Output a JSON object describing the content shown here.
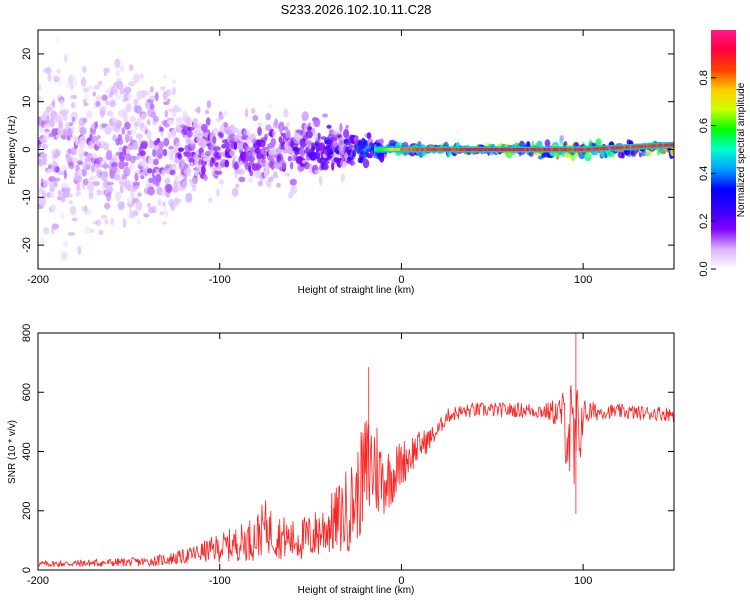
{
  "figure_title": "S233.2026.102.10.11.C28",
  "chart_data": [
    {
      "type": "heatmap",
      "title": "S233.2026.102.10.11.C28",
      "xlabel": "Height of straight line (km)",
      "ylabel": "Frequency (Hz)",
      "xlim": [
        -200,
        150
      ],
      "ylim": [
        -25,
        25
      ],
      "xticks": [
        -200,
        -100,
        0,
        100
      ],
      "yticks": [
        -20,
        -10,
        0,
        10,
        20
      ],
      "colorbar": {
        "label": "Normalized spectral amplitude",
        "range": [
          0.0,
          1.0
        ],
        "ticks": [
          0.0,
          0.2,
          0.4,
          0.6,
          0.8
        ],
        "colormap": [
          "#ffffff",
          "#d9b3ff",
          "#8000ff",
          "#3300ff",
          "#0000ff",
          "#00a0ff",
          "#00ffcc",
          "#00ff00",
          "#ccff00",
          "#ffcc00",
          "#ff4000",
          "#ff0040",
          "#ff1a8c"
        ]
      },
      "description_points": [
        {
          "height_km": -200,
          "spread_hz": 25,
          "peak_amplitude": 0.15
        },
        {
          "height_km": -150,
          "spread_hz": 25,
          "peak_amplitude": 0.15
        },
        {
          "height_km": -110,
          "spread_hz": 12,
          "peak_amplitude": 0.2
        },
        {
          "height_km": -50,
          "spread_hz": 10,
          "peak_amplitude": 0.25
        },
        {
          "height_km": -30,
          "spread_hz": 6,
          "peak_amplitude": 0.35
        },
        {
          "height_km": -15,
          "spread_hz": 3,
          "peak_amplitude": 0.55
        },
        {
          "height_km": 0,
          "spread_hz": 1.5,
          "peak_amplitude": 0.85
        },
        {
          "height_km": 50,
          "spread_hz": 1,
          "peak_amplitude": 0.95
        },
        {
          "height_km": 95,
          "spread_hz": 3,
          "peak_amplitude": 0.9
        },
        {
          "height_km": 150,
          "spread_hz": 1.5,
          "peak_amplitude": 0.9
        }
      ],
      "line_frequency_hz": 0.0,
      "line_end_frequency_hz": 1.0
    },
    {
      "type": "line",
      "xlabel": "Height of straight line (km)",
      "ylabel": "SNR (10 * v/v)",
      "xlim": [
        -200,
        150
      ],
      "ylim": [
        0,
        800
      ],
      "xticks": [
        -200,
        -100,
        0,
        100
      ],
      "yticks": [
        0,
        200,
        400,
        600,
        800
      ],
      "series": [
        {
          "name": "SNR",
          "color": "#ff2020",
          "x": [
            -200,
            -180,
            -160,
            -140,
            -130,
            -120,
            -110,
            -100,
            -90,
            -80,
            -75,
            -70,
            -60,
            -50,
            -40,
            -35,
            -30,
            -25,
            -20,
            -15,
            -10,
            -5,
            0,
            5,
            10,
            15,
            20,
            25,
            30,
            35,
            40,
            50,
            60,
            70,
            80,
            88,
            92,
            95,
            97,
            100,
            110,
            120,
            130,
            140,
            150
          ],
          "y": [
            20,
            22,
            25,
            28,
            35,
            45,
            60,
            75,
            90,
            110,
            150,
            120,
            100,
            110,
            150,
            170,
            200,
            240,
            330,
            360,
            300,
            320,
            360,
            390,
            420,
            440,
            470,
            520,
            530,
            535,
            540,
            540,
            540,
            540,
            535,
            530,
            480,
            380,
            430,
            530,
            535,
            535,
            530,
            530,
            525
          ],
          "spread": [
            10,
            12,
            14,
            16,
            20,
            25,
            35,
            50,
            60,
            80,
            90,
            80,
            70,
            80,
            100,
            120,
            150,
            150,
            200,
            200,
            120,
            100,
            80,
            70,
            50,
            40,
            30,
            25,
            25,
            25,
            25,
            25,
            25,
            25,
            30,
            60,
            200,
            250,
            200,
            50,
            25,
            25,
            25,
            25,
            25
          ]
        }
      ],
      "peak_annotations": [
        {
          "x": -18,
          "y": 685
        },
        {
          "x": 96,
          "y": 800
        },
        {
          "x": 96,
          "y": 190
        }
      ]
    }
  ]
}
